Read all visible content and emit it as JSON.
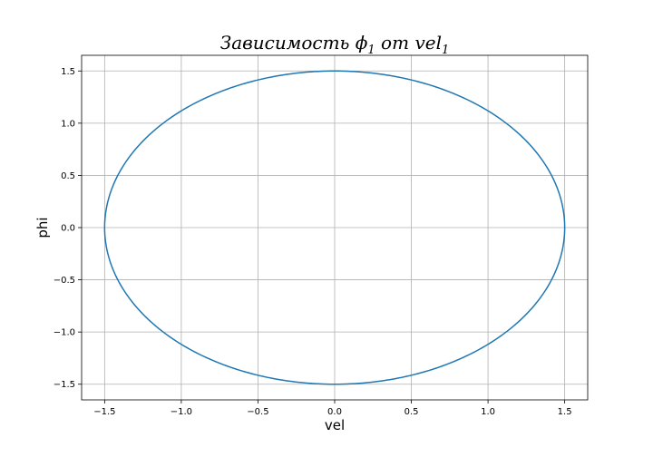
{
  "chart_data": {
    "type": "line",
    "title": {
      "prefix": "Зависимость ",
      "var1": "ϕ",
      "sub1": "1",
      "middle": " от ",
      "var2": "vel",
      "sub2": "1"
    },
    "xlabel": "vel",
    "ylabel": "phi",
    "xlim": [
      -1.65,
      1.65
    ],
    "ylim": [
      -1.65,
      1.65
    ],
    "x_ticks": [
      -1.5,
      -1.0,
      -0.5,
      0.0,
      0.5,
      1.0,
      1.5
    ],
    "y_ticks": [
      -1.5,
      -1.0,
      -0.5,
      0.0,
      0.5,
      1.0,
      1.5
    ],
    "x_tick_labels": [
      "−1.5",
      "−1.0",
      "−0.5",
      "0.0",
      "0.5",
      "1.0",
      "1.5"
    ],
    "y_tick_labels": [
      "−1.5",
      "−1.0",
      "−0.5",
      "0.0",
      "0.5",
      "1.0",
      "1.5"
    ],
    "grid": true,
    "series": [
      {
        "color": "#1f77b4",
        "shape": "ellipse",
        "center": [
          0.0,
          0.0
        ],
        "x_radius": 1.5,
        "y_radius": 1.5,
        "x": [
          1.5,
          1.299,
          0.75,
          0.0,
          -0.75,
          -1.299,
          -1.5,
          -1.299,
          -0.75,
          0.0,
          0.75,
          1.299,
          1.5
        ],
        "y": [
          0.0,
          0.75,
          1.299,
          1.5,
          1.299,
          0.75,
          0.0,
          -0.75,
          -1.299,
          -1.5,
          -1.299,
          -0.75,
          0.0
        ]
      }
    ]
  }
}
